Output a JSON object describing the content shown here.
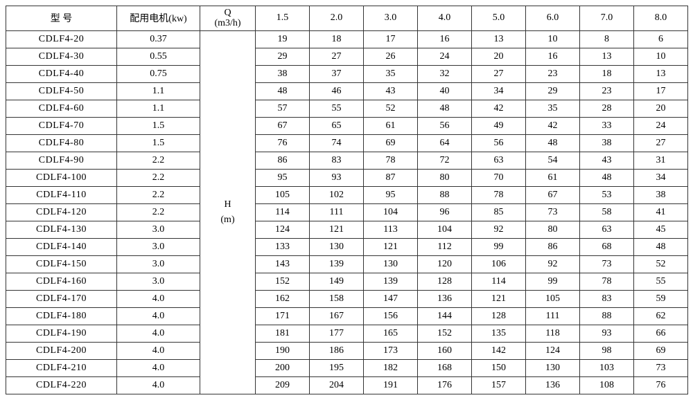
{
  "headers": {
    "model": "型 号",
    "motor": "配用电机(kw)",
    "q_top": "Q",
    "q_bot": "(m3/h)",
    "flows": [
      "1.5",
      "2.0",
      "3.0",
      "4.0",
      "5.0",
      "6.0",
      "7.0",
      "8.0"
    ],
    "h_top": "H",
    "h_bot": "(m)"
  },
  "rows": [
    {
      "model": "CDLF4-20",
      "motor": "0.37",
      "v": [
        "19",
        "18",
        "17",
        "16",
        "13",
        "10",
        "8",
        "6"
      ]
    },
    {
      "model": "CDLF4-30",
      "motor": "0.55",
      "v": [
        "29",
        "27",
        "26",
        "24",
        "20",
        "16",
        "13",
        "10"
      ]
    },
    {
      "model": "CDLF4-40",
      "motor": "0.75",
      "v": [
        "38",
        "37",
        "35",
        "32",
        "27",
        "23",
        "18",
        "13"
      ]
    },
    {
      "model": "CDLF4-50",
      "motor": "1.1",
      "v": [
        "48",
        "46",
        "43",
        "40",
        "34",
        "29",
        "23",
        "17"
      ]
    },
    {
      "model": "CDLF4-60",
      "motor": "1.1",
      "v": [
        "57",
        "55",
        "52",
        "48",
        "42",
        "35",
        "28",
        "20"
      ]
    },
    {
      "model": "CDLF4-70",
      "motor": "1.5",
      "v": [
        "67",
        "65",
        "61",
        "56",
        "49",
        "42",
        "33",
        "24"
      ]
    },
    {
      "model": "CDLF4-80",
      "motor": "1.5",
      "v": [
        "76",
        "74",
        "69",
        "64",
        "56",
        "48",
        "38",
        "27"
      ]
    },
    {
      "model": "CDLF4-90",
      "motor": "2.2",
      "v": [
        "86",
        "83",
        "78",
        "72",
        "63",
        "54",
        "43",
        "31"
      ]
    },
    {
      "model": "CDLF4-100",
      "motor": "2.2",
      "v": [
        "95",
        "93",
        "87",
        "80",
        "70",
        "61",
        "48",
        "34"
      ]
    },
    {
      "model": "CDLF4-110",
      "motor": "2.2",
      "v": [
        "105",
        "102",
        "95",
        "88",
        "78",
        "67",
        "53",
        "38"
      ]
    },
    {
      "model": "CDLF4-120",
      "motor": "2.2",
      "v": [
        "114",
        "111",
        "104",
        "96",
        "85",
        "73",
        "58",
        "41"
      ]
    },
    {
      "model": "CDLF4-130",
      "motor": "3.0",
      "v": [
        "124",
        "121",
        "113",
        "104",
        "92",
        "80",
        "63",
        "45"
      ]
    },
    {
      "model": "CDLF4-140",
      "motor": "3.0",
      "v": [
        "133",
        "130",
        "121",
        "112",
        "99",
        "86",
        "68",
        "48"
      ]
    },
    {
      "model": "CDLF4-150",
      "motor": "3.0",
      "v": [
        "143",
        "139",
        "130",
        "120",
        "106",
        "92",
        "73",
        "52"
      ]
    },
    {
      "model": "CDLF4-160",
      "motor": "3.0",
      "v": [
        "152",
        "149",
        "139",
        "128",
        "114",
        "99",
        "78",
        "55"
      ]
    },
    {
      "model": "CDLF4-170",
      "motor": "4.0",
      "v": [
        "162",
        "158",
        "147",
        "136",
        "121",
        "105",
        "83",
        "59"
      ]
    },
    {
      "model": "CDLF4-180",
      "motor": "4.0",
      "v": [
        "171",
        "167",
        "156",
        "144",
        "128",
        "111",
        "88",
        "62"
      ]
    },
    {
      "model": "CDLF4-190",
      "motor": "4.0",
      "v": [
        "181",
        "177",
        "165",
        "152",
        "135",
        "118",
        "93",
        "66"
      ]
    },
    {
      "model": "CDLF4-200",
      "motor": "4.0",
      "v": [
        "190",
        "186",
        "173",
        "160",
        "142",
        "124",
        "98",
        "69"
      ]
    },
    {
      "model": "CDLF4-210",
      "motor": "4.0",
      "v": [
        "200",
        "195",
        "182",
        "168",
        "150",
        "130",
        "103",
        "73"
      ]
    },
    {
      "model": "CDLF4-220",
      "motor": "4.0",
      "v": [
        "209",
        "204",
        "191",
        "176",
        "157",
        "136",
        "108",
        "76"
      ]
    }
  ],
  "style": {
    "border_color": "#333333",
    "background": "#ffffff",
    "text_color": "#000000",
    "font_family": "SimSun",
    "header_fontsize": 14,
    "cell_fontsize": 14
  }
}
